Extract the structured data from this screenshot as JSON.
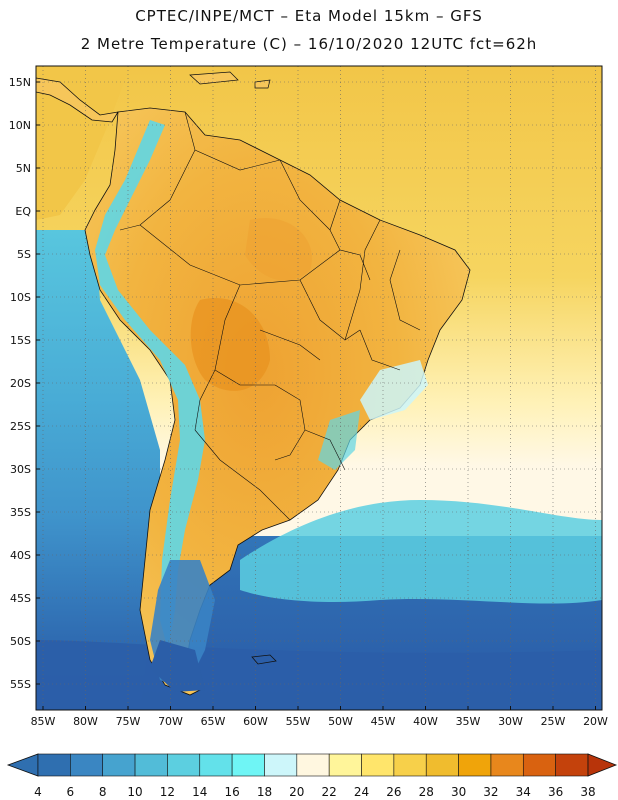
{
  "header": {
    "line1": "CPTEC/INPE/MCT –  Eta Model 15km – GFS",
    "line2": "2 Metre Temperature (C) – 16/10/2020 12UTC fct=62h"
  },
  "axes": {
    "lat_labels": [
      "15N",
      "10N",
      "5N",
      "EQ",
      "5S",
      "10S",
      "15S",
      "20S",
      "25S",
      "30S",
      "35S",
      "40S",
      "45S",
      "50S",
      "55S"
    ],
    "lon_labels": [
      "85W",
      "80W",
      "75W",
      "70W",
      "65W",
      "60W",
      "55W",
      "50W",
      "45W",
      "40W",
      "35W",
      "30W",
      "25W",
      "20W"
    ],
    "grid": "dotted"
  },
  "colorbar": {
    "labels": [
      "4",
      "6",
      "8",
      "10",
      "12",
      "14",
      "16",
      "18",
      "20",
      "22",
      "24",
      "26",
      "28",
      "30",
      "32",
      "34",
      "36",
      "38"
    ],
    "low_color": "#2f6fb0",
    "high_color": "#b8340a",
    "colors": [
      "#2f6fb0",
      "#3a86c2",
      "#46a3cf",
      "#52bcd8",
      "#5ccfe0",
      "#63e1ea",
      "#6ff5f5",
      "#cdf6fa",
      "#fff7e0",
      "#fff59a",
      "#ffe56b",
      "#f7d04a",
      "#f0bc2e",
      "#f0a40a",
      "#e8871c",
      "#d96210",
      "#c4420c"
    ]
  },
  "map": {
    "colors": {
      "ocean_cold": "#2b5ea8",
      "ocean_cool": "#3a83c4",
      "ocean_mild": "#47aad4",
      "ocean_warm": "#5fd0e2",
      "ocean_tropic": "#f2cf52",
      "land_hot": "#f0ac38",
      "land_warm": "#f6c65a",
      "andes": "#5fd6e6"
    }
  }
}
